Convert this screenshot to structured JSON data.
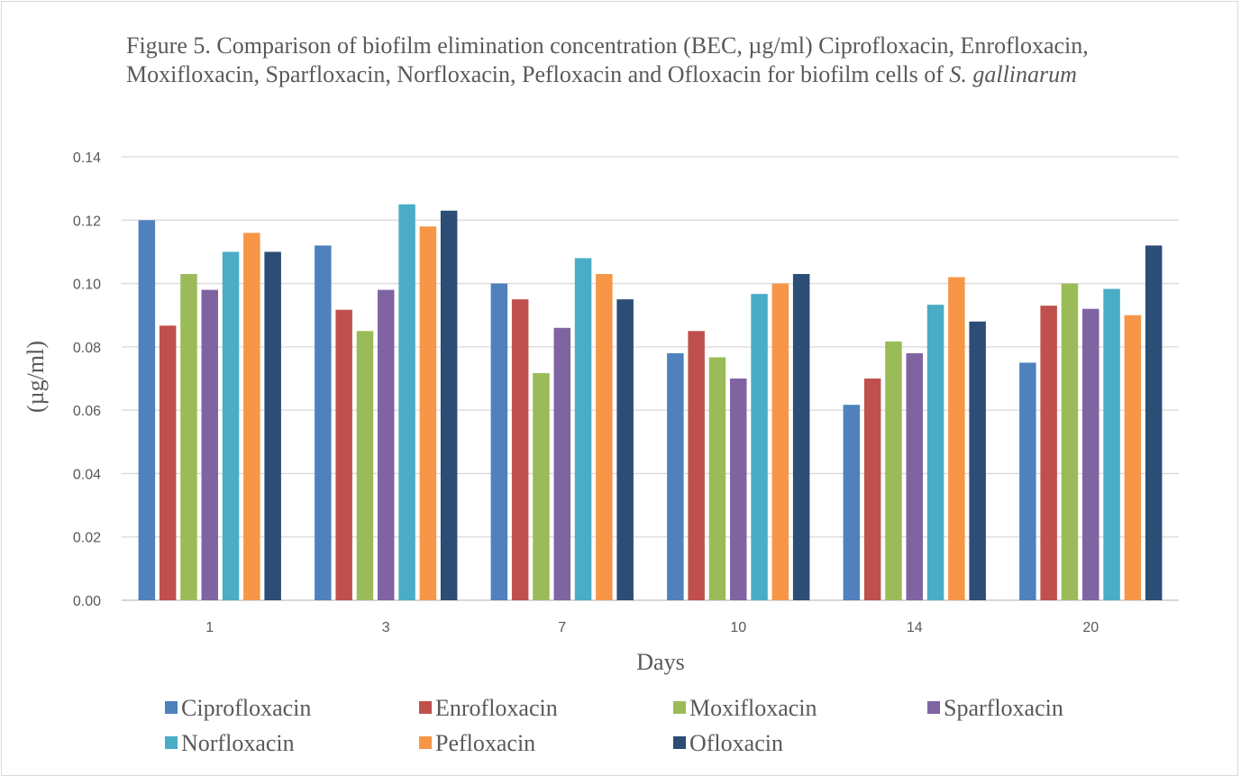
{
  "chart_data": {
    "type": "bar",
    "title_parts": [
      {
        "text": "Figure 5. Comparison of biofilm elimination concentration (BEC, µg/ml) Ciprofloxacin, Enrofloxacin, Moxifloxacin, Sparfloxacin, Norfloxacin, Pefloxacin and  Ofloxacin for biofilm cells of ",
        "italic": false
      },
      {
        "text": "S. gallinarum",
        "italic": true
      }
    ],
    "xlabel": "Days",
    "ylabel": "(µg/ml)",
    "ylim": [
      0,
      0.14
    ],
    "yticks": [
      "0.00",
      "0.02",
      "0.04",
      "0.06",
      "0.08",
      "0.10",
      "0.12",
      "0.14"
    ],
    "grid": true,
    "legend_position": "bottom",
    "categories": [
      "1",
      "3",
      "7",
      "10",
      "14",
      "20"
    ],
    "series": [
      {
        "name": "Ciprofloxacin",
        "color": "#4f81bd",
        "values": [
          0.12,
          0.112,
          0.1,
          0.078,
          0.0617,
          0.075
        ]
      },
      {
        "name": "Enrofloxacin",
        "color": "#c0504d",
        "values": [
          0.0867,
          0.0917,
          0.095,
          0.085,
          0.07,
          0.093
        ]
      },
      {
        "name": "Moxifloxacin",
        "color": "#9bbb59",
        "values": [
          0.103,
          0.085,
          0.0717,
          0.0767,
          0.0817,
          0.1
        ]
      },
      {
        "name": "Sparfloxacin",
        "color": "#8064a2",
        "values": [
          0.098,
          0.098,
          0.086,
          0.07,
          0.078,
          0.092
        ]
      },
      {
        "name": "Norfloxacin",
        "color": "#4bacc6",
        "values": [
          0.11,
          0.125,
          0.108,
          0.0967,
          0.0933,
          0.0983
        ]
      },
      {
        "name": "Pefloxacin",
        "color": "#f79646",
        "values": [
          0.116,
          0.118,
          0.103,
          0.1,
          0.102,
          0.09
        ]
      },
      {
        "name": "Ofloxacin",
        "color": "#2c4d75",
        "values": [
          0.11,
          0.123,
          0.095,
          0.103,
          0.088,
          0.112
        ]
      }
    ]
  }
}
